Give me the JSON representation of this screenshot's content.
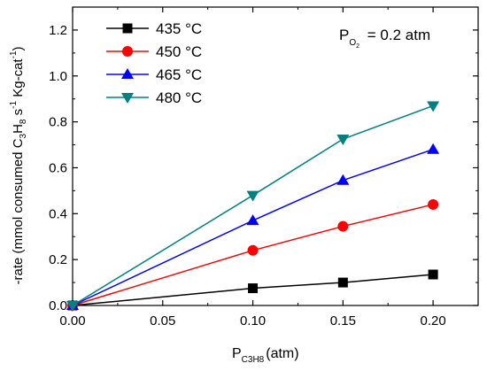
{
  "chart_data": {
    "type": "line",
    "x": [
      0.0,
      0.1,
      0.15,
      0.2
    ],
    "series": [
      {
        "name": "435 °C",
        "marker": "square",
        "color": "#000000",
        "values": [
          0.0,
          0.075,
          0.1,
          0.135
        ]
      },
      {
        "name": "450 °C",
        "marker": "circle",
        "color": "#ff0000",
        "values": [
          0.0,
          0.24,
          0.345,
          0.44
        ]
      },
      {
        "name": "465 °C",
        "marker": "triangle-up",
        "color": "#0000ff",
        "values": [
          0.0,
          0.37,
          0.545,
          0.68
        ]
      },
      {
        "name": "480 °C",
        "marker": "triangle-down",
        "color": "#008080",
        "values": [
          0.0,
          0.48,
          0.725,
          0.87
        ]
      }
    ],
    "xlabel": "P",
    "xlabel_sub": "C3H8",
    "xlabel_unit": "(atm)",
    "ylabel": "-rate (mmol consumed C3H8 s-1 Kg-cat-1)",
    "annotation": "PO2 = 0.2 atm",
    "xlim": [
      0.0,
      0.225
    ],
    "ylim": [
      0.0,
      1.3
    ],
    "xticks": [
      "0.00",
      "0.05",
      "0.10",
      "0.15",
      "0.20"
    ],
    "yticks": [
      "0.0",
      "0.2",
      "0.4",
      "0.6",
      "0.8",
      "1.0",
      "1.2"
    ],
    "xtick_values": [
      0.0,
      0.05,
      0.1,
      0.15,
      0.2
    ],
    "ytick_values": [
      0.0,
      0.2,
      0.4,
      0.6,
      0.8,
      1.0,
      1.2
    ],
    "legend_position": "top-left",
    "grid": false
  }
}
